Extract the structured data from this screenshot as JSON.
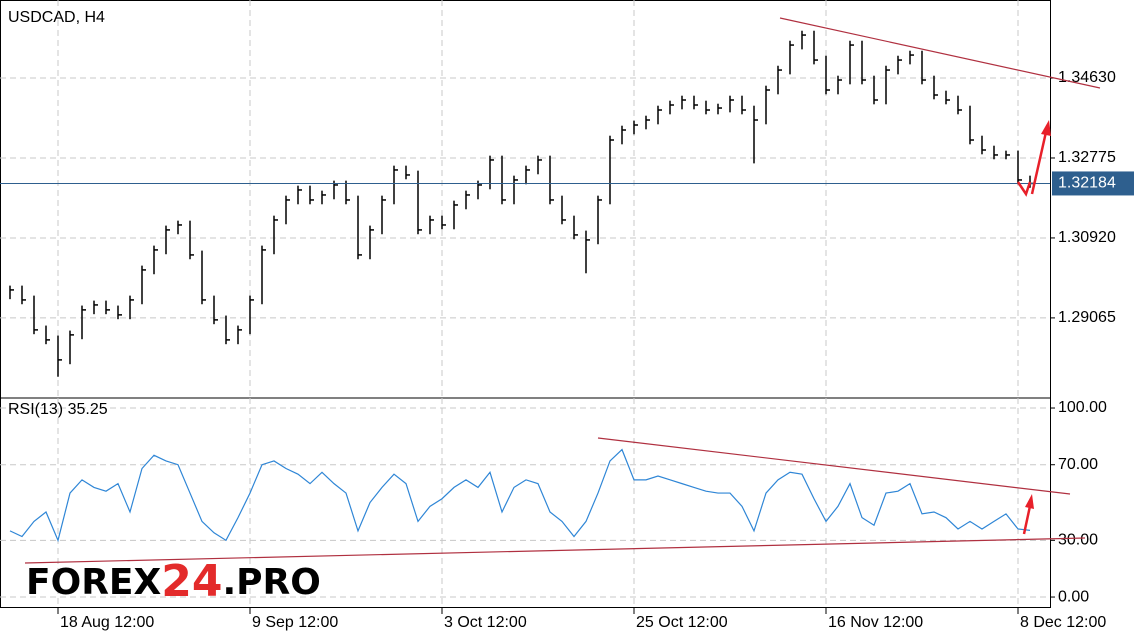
{
  "chart_data": [
    {
      "type": "ohlc",
      "title": "USDCAD, H4",
      "categories": [
        null,
        null,
        null,
        null,
        "18 Aug 12:00",
        null,
        null,
        null,
        null,
        null,
        null,
        null,
        null,
        null,
        null,
        null,
        null,
        null,
        null,
        null,
        "9 Sep 12:00",
        null,
        null,
        null,
        null,
        null,
        null,
        null,
        null,
        null,
        null,
        null,
        null,
        null,
        null,
        null,
        "3 Oct 12:00",
        null,
        null,
        null,
        null,
        null,
        null,
        null,
        null,
        null,
        null,
        null,
        null,
        null,
        null,
        null,
        "25 Oct 12:00",
        null,
        null,
        null,
        null,
        null,
        null,
        null,
        null,
        null,
        null,
        null,
        null,
        null,
        null,
        null,
        "16 Nov 12:00",
        null,
        null,
        null,
        null,
        null,
        null,
        null,
        null,
        null,
        null,
        null,
        null,
        null,
        null,
        null,
        "8 Dec 12:00",
        null
      ],
      "bars": [
        [
          1.29814,
          1.295,
          1.29714
        ],
        [
          1.29814,
          1.29382,
          1.29482
        ],
        [
          1.29582,
          1.28687,
          1.28787
        ],
        [
          1.28887,
          1.28455,
          1.28555
        ],
        [
          1.28655,
          1.277,
          1.28091
        ],
        [
          1.28771,
          1.27991,
          1.28671
        ],
        [
          1.29351,
          1.28571,
          1.29251
        ],
        [
          1.29466,
          1.29151,
          1.29366
        ],
        [
          1.29466,
          1.29151,
          1.29251
        ],
        [
          1.29351,
          1.29035,
          1.29135
        ],
        [
          1.29582,
          1.29035,
          1.29482
        ],
        [
          1.30278,
          1.29382,
          1.30178
        ],
        [
          1.30742,
          1.30078,
          1.30642
        ],
        [
          1.31206,
          1.30542,
          1.31106
        ],
        [
          1.31321,
          1.31006,
          1.31221
        ],
        [
          1.31321,
          1.30426,
          1.30526
        ],
        [
          1.30626,
          1.29382,
          1.29482
        ],
        [
          1.29582,
          1.28919,
          1.29019
        ],
        [
          1.29119,
          1.28455,
          1.28555
        ],
        [
          1.28887,
          1.28455,
          1.28787
        ],
        [
          1.29582,
          1.28687,
          1.29482
        ],
        [
          1.30742,
          1.29382,
          1.30642
        ],
        [
          1.31437,
          1.30542,
          1.31337
        ],
        [
          1.31901,
          1.31237,
          1.31801
        ],
        [
          1.32133,
          1.31701,
          1.32033
        ],
        [
          1.32133,
          1.31701,
          1.31801
        ],
        [
          1.32017,
          1.31701,
          1.31917
        ],
        [
          1.32249,
          1.31817,
          1.32149
        ],
        [
          1.32249,
          1.31701,
          1.31801
        ],
        [
          1.31901,
          1.30426,
          1.30526
        ],
        [
          1.31206,
          1.30426,
          1.31106
        ],
        [
          1.31901,
          1.31006,
          1.31801
        ],
        [
          1.32597,
          1.31701,
          1.32497
        ],
        [
          1.32597,
          1.32281,
          1.32381
        ],
        [
          1.32481,
          1.31006,
          1.31106
        ],
        [
          1.31437,
          1.31006,
          1.31337
        ],
        [
          1.31437,
          1.31121,
          1.31221
        ],
        [
          1.31785,
          1.31121,
          1.31685
        ],
        [
          1.32017,
          1.31585,
          1.31917
        ],
        [
          1.32249,
          1.31817,
          1.32149
        ],
        [
          1.32829,
          1.32049,
          1.32729
        ],
        [
          1.32829,
          1.31701,
          1.31801
        ],
        [
          1.32365,
          1.31701,
          1.32265
        ],
        [
          1.32597,
          1.32165,
          1.32497
        ],
        [
          1.32829,
          1.32397,
          1.32729
        ],
        [
          1.32829,
          1.31701,
          1.31801
        ],
        [
          1.31901,
          1.31237,
          1.31337
        ],
        [
          1.31437,
          1.3089,
          1.3099
        ],
        [
          1.3109,
          1.301,
          1.30874
        ],
        [
          1.31901,
          1.30774,
          1.31801
        ],
        [
          1.33292,
          1.31701,
          1.33192
        ],
        [
          1.33524,
          1.33092,
          1.33424
        ],
        [
          1.3364,
          1.33324,
          1.3354
        ],
        [
          1.33756,
          1.3344,
          1.33656
        ],
        [
          1.33988,
          1.33556,
          1.33888
        ],
        [
          1.34104,
          1.33788,
          1.34004
        ],
        [
          1.3422,
          1.33904,
          1.3412
        ],
        [
          1.3422,
          1.33904,
          1.34004
        ],
        [
          1.34104,
          1.33788,
          1.33888
        ],
        [
          1.34034,
          1.33788,
          1.33934
        ],
        [
          1.3422,
          1.33834,
          1.3412
        ],
        [
          1.3422,
          1.33788,
          1.33888
        ],
        [
          1.33988,
          1.3265,
          1.33656
        ],
        [
          1.34452,
          1.33556,
          1.34352
        ],
        [
          1.34915,
          1.34252,
          1.34815
        ],
        [
          1.35495,
          1.34715,
          1.35395
        ],
        [
          1.35727,
          1.35295,
          1.35627
        ],
        [
          1.35727,
          1.34947,
          1.35047
        ],
        [
          1.35147,
          1.34252,
          1.34352
        ],
        [
          1.34684,
          1.34252,
          1.34584
        ],
        [
          1.35495,
          1.34484,
          1.35395
        ],
        [
          1.35495,
          1.34484,
          1.34584
        ],
        [
          1.34684,
          1.3402,
          1.3412
        ],
        [
          1.34915,
          1.3402,
          1.34815
        ],
        [
          1.35147,
          1.34715,
          1.35047
        ],
        [
          1.35263,
          1.34947,
          1.35163
        ],
        [
          1.35263,
          1.34484,
          1.34584
        ],
        [
          1.34684,
          1.34136,
          1.34236
        ],
        [
          1.34336,
          1.3402,
          1.3412
        ],
        [
          1.3422,
          1.33788,
          1.33888
        ],
        [
          1.33988,
          1.33092,
          1.33192
        ],
        [
          1.33292,
          1.3286,
          1.3296
        ],
        [
          1.3306,
          1.32745,
          1.32845
        ],
        [
          1.32945,
          1.32745,
          1.32845
        ],
        [
          1.32945,
          1.32165,
          1.32265
        ],
        [
          1.32365,
          1.32084,
          1.32184
        ]
      ],
      "color": "#000000",
      "last_price": 1.32184,
      "last_price_color": "#2e5f8e",
      "ylim": [
        1.2723,
        1.3644
      ],
      "yticks": [
        {
          "value": 1.3463,
          "label": "1.34630"
        },
        1.32775,
        {
          "value": 1.3092,
          "label": "1.30920"
        },
        1.29065
      ],
      "grid": true,
      "watermark": [
        "FOREX",
        "24",
        ".PRO"
      ]
    },
    {
      "type": "line",
      "title": "RSI(13)",
      "color": "#2f86d6",
      "values": [
        35,
        32,
        40,
        45,
        30,
        55,
        62,
        58,
        56,
        60,
        45,
        68,
        75,
        72,
        70,
        55,
        40,
        34,
        30,
        42,
        55,
        70,
        72,
        68,
        65,
        60,
        66,
        60,
        55,
        35,
        50,
        58,
        65,
        60,
        40,
        48,
        52,
        58,
        62,
        58,
        66,
        45,
        58,
        62,
        60,
        45,
        40,
        32,
        40,
        55,
        72,
        78,
        62,
        62,
        64,
        62,
        60,
        58,
        56,
        55,
        55,
        48,
        35,
        55,
        62,
        66,
        65,
        52,
        40,
        48,
        60,
        42,
        38,
        55,
        56,
        60,
        44,
        45,
        42,
        36,
        40,
        36,
        40,
        44,
        36,
        35.25
      ],
      "ylim": [
        -5.8,
        105.3
      ],
      "yticks": [
        {
          "value": 100,
          "label": "100.00"
        },
        {
          "value": 70,
          "label": "70.00"
        },
        {
          "value": 30,
          "label": "30.00"
        },
        {
          "value": 0,
          "label": "0.00"
        }
      ],
      "grid": true
    }
  ]
}
